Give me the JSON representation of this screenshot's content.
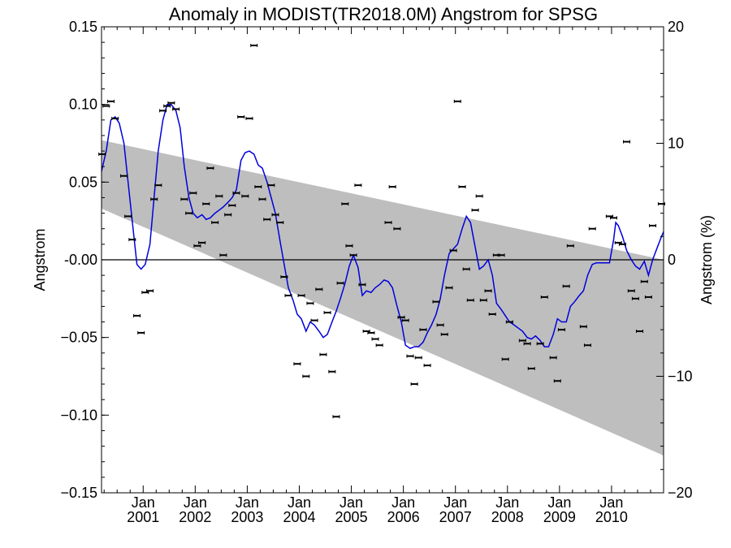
{
  "chart_data": {
    "type": "scatter",
    "title": "Anomaly in MODIST(TR2018.0M) Angstrom for SPSG",
    "ylabel": "Angstrom",
    "ylabel_right": "Angstrom (%)",
    "ylim": [
      -0.15,
      0.15
    ],
    "ylim_right": [
      -20,
      20
    ],
    "xlim": [
      2000.2,
      2011.0
    ],
    "yticks": [
      {
        "value": 0.15,
        "label": "0.15"
      },
      {
        "value": 0.1,
        "label": "0.10"
      },
      {
        "value": 0.05,
        "label": "0.05"
      },
      {
        "value": 0.0,
        "label": "-0.00"
      },
      {
        "value": -0.05,
        "label": "−0.05"
      },
      {
        "value": -0.1,
        "label": "−0.10"
      },
      {
        "value": -0.15,
        "label": "−0.15"
      }
    ],
    "yticks_right": [
      {
        "value": 20,
        "label": "20"
      },
      {
        "value": 10,
        "label": "10"
      },
      {
        "value": 0,
        "label": "0"
      },
      {
        "value": -10,
        "label": "−10"
      },
      {
        "value": -20,
        "label": "−20"
      }
    ],
    "xticks": [
      {
        "value": 2001.0,
        "label_top": "Jan",
        "label_bottom": "2001"
      },
      {
        "value": 2002.0,
        "label_top": "Jan",
        "label_bottom": "2002"
      },
      {
        "value": 2003.0,
        "label_top": "Jan",
        "label_bottom": "2003"
      },
      {
        "value": 2004.0,
        "label_top": "Jan",
        "label_bottom": "2004"
      },
      {
        "value": 2005.0,
        "label_top": "Jan",
        "label_bottom": "2005"
      },
      {
        "value": 2006.0,
        "label_top": "Jan",
        "label_bottom": "2006"
      },
      {
        "value": 2007.0,
        "label_top": "Jan",
        "label_bottom": "2007"
      },
      {
        "value": 2008.0,
        "label_top": "Jan",
        "label_bottom": "2008"
      },
      {
        "value": 2009.0,
        "label_top": "Jan",
        "label_bottom": "2009"
      },
      {
        "value": 2010.0,
        "label_top": "Jan",
        "label_bottom": "2010"
      }
    ],
    "trend_band": {
      "color": "#bebebe",
      "start": {
        "x": 2000.2,
        "upper": 0.077,
        "lower": 0.033
      },
      "end": {
        "x": 2011.0,
        "upper": 0.0,
        "lower": -0.126
      }
    },
    "zero_line": 0.0,
    "points": [
      [
        2000.21,
        0.068
      ],
      [
        2000.29,
        0.099
      ],
      [
        2000.38,
        0.102
      ],
      [
        2000.46,
        0.091
      ],
      [
        2000.63,
        0.054
      ],
      [
        2000.71,
        0.028
      ],
      [
        2000.79,
        0.013
      ],
      [
        2000.88,
        -0.036
      ],
      [
        2000.96,
        -0.047
      ],
      [
        2001.04,
        -0.021
      ],
      [
        2001.13,
        -0.02
      ],
      [
        2001.21,
        0.039
      ],
      [
        2001.29,
        0.048
      ],
      [
        2001.38,
        0.096
      ],
      [
        2001.46,
        0.099
      ],
      [
        2001.54,
        0.101
      ],
      [
        2001.63,
        0.097
      ],
      [
        2001.79,
        0.039
      ],
      [
        2001.88,
        0.03
      ],
      [
        2001.96,
        0.043
      ],
      [
        2002.04,
        0.009
      ],
      [
        2002.13,
        0.011
      ],
      [
        2002.21,
        0.036
      ],
      [
        2002.29,
        0.059
      ],
      [
        2002.38,
        0.024
      ],
      [
        2002.46,
        0.041
      ],
      [
        2002.54,
        0.003
      ],
      [
        2002.63,
        0.029
      ],
      [
        2002.71,
        0.035
      ],
      [
        2002.79,
        0.043
      ],
      [
        2002.88,
        0.092
      ],
      [
        2002.96,
        0.041
      ],
      [
        2003.04,
        0.091
      ],
      [
        2003.13,
        0.138
      ],
      [
        2003.21,
        0.047
      ],
      [
        2003.29,
        0.039
      ],
      [
        2003.38,
        0.026
      ],
      [
        2003.46,
        0.048
      ],
      [
        2003.54,
        0.029
      ],
      [
        2003.63,
        0.024
      ],
      [
        2003.71,
        -0.011
      ],
      [
        2003.79,
        -0.023
      ],
      [
        2003.96,
        -0.067
      ],
      [
        2004.04,
        -0.023
      ],
      [
        2004.13,
        -0.075
      ],
      [
        2004.21,
        -0.028
      ],
      [
        2004.29,
        -0.039
      ],
      [
        2004.38,
        -0.019
      ],
      [
        2004.46,
        -0.061
      ],
      [
        2004.54,
        -0.034
      ],
      [
        2004.63,
        -0.072
      ],
      [
        2004.71,
        -0.101
      ],
      [
        2004.79,
        -0.015
      ],
      [
        2004.88,
        0.036
      ],
      [
        2004.96,
        0.009
      ],
      [
        2005.04,
        0.003
      ],
      [
        2005.13,
        0.048
      ],
      [
        2005.21,
        -0.016
      ],
      [
        2005.29,
        -0.046
      ],
      [
        2005.38,
        -0.047
      ],
      [
        2005.46,
        -0.051
      ],
      [
        2005.54,
        -0.055
      ],
      [
        2005.71,
        0.024
      ],
      [
        2005.79,
        0.047
      ],
      [
        2005.88,
        0.02
      ],
      [
        2005.96,
        -0.037
      ],
      [
        2006.04,
        -0.039
      ],
      [
        2006.13,
        -0.062
      ],
      [
        2006.21,
        -0.08
      ],
      [
        2006.29,
        -0.063
      ],
      [
        2006.38,
        -0.045
      ],
      [
        2006.46,
        -0.068
      ],
      [
        2006.63,
        -0.027
      ],
      [
        2006.71,
        -0.042
      ],
      [
        2006.79,
        -0.048
      ],
      [
        2006.88,
        -0.018
      ],
      [
        2006.96,
        0.006
      ],
      [
        2007.04,
        0.102
      ],
      [
        2007.13,
        0.047
      ],
      [
        2007.21,
        -0.006
      ],
      [
        2007.29,
        -0.026
      ],
      [
        2007.38,
        0.032
      ],
      [
        2007.46,
        0.041
      ],
      [
        2007.54,
        -0.026
      ],
      [
        2007.63,
        -0.02
      ],
      [
        2007.71,
        -0.035
      ],
      [
        2007.79,
        0.003
      ],
      [
        2007.88,
        0.003
      ],
      [
        2007.96,
        -0.064
      ],
      [
        2008.04,
        -0.04
      ],
      [
        2008.29,
        -0.052
      ],
      [
        2008.38,
        -0.054
      ],
      [
        2008.46,
        -0.07
      ],
      [
        2008.63,
        -0.054
      ],
      [
        2008.71,
        -0.024
      ],
      [
        2008.88,
        -0.063
      ],
      [
        2008.96,
        -0.078
      ],
      [
        2009.04,
        -0.045
      ],
      [
        2009.13,
        -0.017
      ],
      [
        2009.21,
        0.009
      ],
      [
        2009.46,
        -0.043
      ],
      [
        2009.54,
        -0.055
      ],
      [
        2009.63,
        0.02
      ],
      [
        2009.96,
        0.028
      ],
      [
        2010.04,
        0.027
      ],
      [
        2010.13,
        0.011
      ],
      [
        2010.21,
        0.01
      ],
      [
        2010.29,
        0.076
      ],
      [
        2010.38,
        -0.02
      ],
      [
        2010.46,
        -0.025
      ],
      [
        2010.54,
        -0.046
      ],
      [
        2010.63,
        -0.014
      ],
      [
        2010.71,
        -0.024
      ],
      [
        2010.79,
        0.022
      ],
      [
        2010.96,
        0.036
      ]
    ],
    "smoothed_line": {
      "color": "#0000dd",
      "points": [
        [
          2000.2,
          0.057
        ],
        [
          2000.29,
          0.07
        ],
        [
          2000.38,
          0.09
        ],
        [
          2000.46,
          0.092
        ],
        [
          2000.54,
          0.088
        ],
        [
          2000.63,
          0.075
        ],
        [
          2000.71,
          0.05
        ],
        [
          2000.79,
          0.025
        ],
        [
          2000.88,
          -0.003
        ],
        [
          2000.96,
          -0.006
        ],
        [
          2001.04,
          -0.003
        ],
        [
          2001.13,
          0.01
        ],
        [
          2001.21,
          0.04
        ],
        [
          2001.29,
          0.07
        ],
        [
          2001.38,
          0.09
        ],
        [
          2001.46,
          0.1
        ],
        [
          2001.54,
          0.1
        ],
        [
          2001.63,
          0.096
        ],
        [
          2001.71,
          0.085
        ],
        [
          2001.79,
          0.06
        ],
        [
          2001.88,
          0.04
        ],
        [
          2001.96,
          0.03
        ],
        [
          2002.04,
          0.027
        ],
        [
          2002.13,
          0.029
        ],
        [
          2002.21,
          0.026
        ],
        [
          2002.29,
          0.027
        ],
        [
          2002.38,
          0.03
        ],
        [
          2002.46,
          0.032
        ],
        [
          2002.54,
          0.034
        ],
        [
          2002.63,
          0.037
        ],
        [
          2002.71,
          0.04
        ],
        [
          2002.79,
          0.045
        ],
        [
          2002.88,
          0.064
        ],
        [
          2002.96,
          0.069
        ],
        [
          2003.04,
          0.07
        ],
        [
          2003.13,
          0.068
        ],
        [
          2003.21,
          0.061
        ],
        [
          2003.29,
          0.059
        ],
        [
          2003.38,
          0.05
        ],
        [
          2003.46,
          0.04
        ],
        [
          2003.54,
          0.03
        ],
        [
          2003.63,
          0.012
        ],
        [
          2003.71,
          -0.003
        ],
        [
          2003.79,
          -0.018
        ],
        [
          2003.88,
          -0.026
        ],
        [
          2003.96,
          -0.035
        ],
        [
          2004.04,
          -0.038
        ],
        [
          2004.13,
          -0.046
        ],
        [
          2004.21,
          -0.04
        ],
        [
          2004.29,
          -0.042
        ],
        [
          2004.38,
          -0.046
        ],
        [
          2004.46,
          -0.05
        ],
        [
          2004.54,
          -0.048
        ],
        [
          2004.63,
          -0.04
        ],
        [
          2004.71,
          -0.033
        ],
        [
          2004.79,
          -0.025
        ],
        [
          2004.88,
          -0.015
        ],
        [
          2004.96,
          -0.004
        ],
        [
          2005.04,
          0.003
        ],
        [
          2005.13,
          -0.005
        ],
        [
          2005.21,
          -0.023
        ],
        [
          2005.29,
          -0.02
        ],
        [
          2005.38,
          -0.021
        ],
        [
          2005.46,
          -0.018
        ],
        [
          2005.54,
          -0.016
        ],
        [
          2005.63,
          -0.013
        ],
        [
          2005.71,
          -0.014
        ],
        [
          2005.79,
          -0.018
        ],
        [
          2005.88,
          -0.03
        ],
        [
          2005.96,
          -0.04
        ],
        [
          2006.04,
          -0.055
        ],
        [
          2006.13,
          -0.057
        ],
        [
          2006.21,
          -0.056
        ],
        [
          2006.29,
          -0.056
        ],
        [
          2006.38,
          -0.053
        ],
        [
          2006.46,
          -0.047
        ],
        [
          2006.54,
          -0.042
        ],
        [
          2006.63,
          -0.035
        ],
        [
          2006.71,
          -0.025
        ],
        [
          2006.79,
          -0.01
        ],
        [
          2006.88,
          0.004
        ],
        [
          2006.96,
          0.007
        ],
        [
          2007.04,
          0.01
        ],
        [
          2007.13,
          0.02
        ],
        [
          2007.21,
          0.028
        ],
        [
          2007.29,
          0.024
        ],
        [
          2007.38,
          0.008
        ],
        [
          2007.46,
          -0.006
        ],
        [
          2007.54,
          -0.004
        ],
        [
          2007.63,
          0.0
        ],
        [
          2007.71,
          -0.01
        ],
        [
          2007.79,
          -0.028
        ],
        [
          2007.88,
          -0.032
        ],
        [
          2007.96,
          -0.036
        ],
        [
          2008.04,
          -0.04
        ],
        [
          2008.13,
          -0.042
        ],
        [
          2008.21,
          -0.044
        ],
        [
          2008.29,
          -0.046
        ],
        [
          2008.38,
          -0.05
        ],
        [
          2008.46,
          -0.051
        ],
        [
          2008.54,
          -0.049
        ],
        [
          2008.63,
          -0.052
        ],
        [
          2008.71,
          -0.056
        ],
        [
          2008.79,
          -0.056
        ],
        [
          2008.88,
          -0.048
        ],
        [
          2008.96,
          -0.038
        ],
        [
          2009.04,
          -0.04
        ],
        [
          2009.13,
          -0.04
        ],
        [
          2009.21,
          -0.03
        ],
        [
          2009.29,
          -0.027
        ],
        [
          2009.38,
          -0.023
        ],
        [
          2009.46,
          -0.02
        ],
        [
          2009.54,
          -0.01
        ],
        [
          2009.63,
          -0.003
        ],
        [
          2009.71,
          -0.002
        ],
        [
          2009.79,
          -0.002
        ],
        [
          2009.88,
          -0.002
        ],
        [
          2009.96,
          -0.002
        ],
        [
          2010.04,
          0.013
        ],
        [
          2010.08,
          0.024
        ],
        [
          2010.13,
          0.022
        ],
        [
          2010.21,
          0.015
        ],
        [
          2010.29,
          0.006
        ],
        [
          2010.38,
          0.0
        ],
        [
          2010.46,
          -0.004
        ],
        [
          2010.54,
          -0.006
        ],
        [
          2010.63,
          -0.001
        ],
        [
          2010.71,
          -0.01
        ],
        [
          2010.79,
          0.0
        ],
        [
          2010.88,
          0.008
        ],
        [
          2010.96,
          0.015
        ],
        [
          2011.0,
          0.018
        ]
      ]
    },
    "grid": false,
    "legend": "none"
  }
}
